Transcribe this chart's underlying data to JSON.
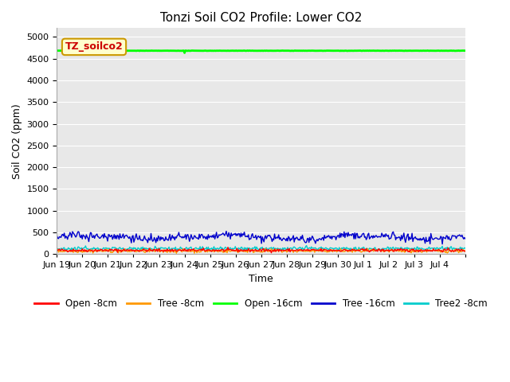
{
  "title": "Tonzi Soil CO2 Profile: Lower CO2",
  "ylabel": "Soil CO2 (ppm)",
  "xlabel": "Time",
  "annotation": "TZ_soilco2",
  "ylim": [
    0,
    5200
  ],
  "yticks": [
    0,
    500,
    1000,
    1500,
    2000,
    2500,
    3000,
    3500,
    4000,
    4500,
    5000
  ],
  "fig_bg_color": "#ffffff",
  "plot_bg_color": "#e8e8e8",
  "series": {
    "open_8cm": {
      "color": "#ff0000",
      "lw": 1.0,
      "mean": 90,
      "std": 18,
      "label": "Open -8cm"
    },
    "tree_8cm": {
      "color": "#ff9900",
      "lw": 1.0,
      "mean": 75,
      "std": 20,
      "label": "Tree -8cm"
    },
    "open_16cm": {
      "color": "#00ff00",
      "lw": 2.0,
      "mean": 4680,
      "std": 3,
      "label": "Open -16cm"
    },
    "tree_16cm": {
      "color": "#0000cc",
      "lw": 1.0,
      "mean": 390,
      "std": 45,
      "label": "Tree -16cm"
    },
    "tree2_8cm": {
      "color": "#00cccc",
      "lw": 1.0,
      "mean": 130,
      "std": 22,
      "label": "Tree2 -8cm"
    }
  },
  "n_points": 500,
  "x_start": 18.0,
  "x_end": 34.0,
  "xtick_positions": [
    18,
    19,
    20,
    21,
    22,
    23,
    24,
    25,
    26,
    27,
    28,
    29,
    30,
    31,
    32,
    33,
    34
  ],
  "xtick_labels": [
    "Jun 19",
    "Jun 20",
    "Jun 21",
    "Jun 22",
    "Jun 23",
    "Jun 24",
    "Jun 25",
    "Jun 26",
    "Jun 27",
    "Jun 28",
    "Jun 29",
    "Jun 30",
    "Jul 1",
    "Jul 2",
    "Jul 3",
    "Jul 4",
    ""
  ],
  "open16_dip_x": 23.0,
  "open16_dip_val": 4630,
  "title_fontsize": 11,
  "label_fontsize": 9,
  "tick_fontsize": 8,
  "annotation_fontsize": 9
}
